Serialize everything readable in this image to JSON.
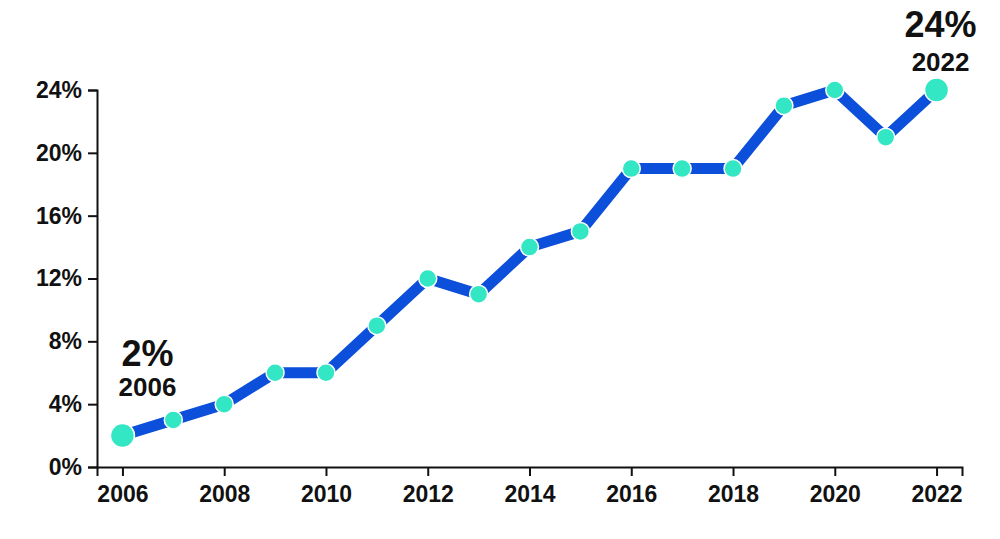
{
  "chart_data": {
    "type": "line",
    "x": [
      2006,
      2007,
      2008,
      2009,
      2010,
      2011,
      2012,
      2013,
      2014,
      2015,
      2016,
      2017,
      2018,
      2019,
      2020,
      2021,
      2022
    ],
    "series": [
      {
        "color": "#0b4fdb",
        "marker": "circle",
        "values": [
          2,
          3,
          4,
          6,
          6,
          9,
          12,
          11,
          14,
          15,
          19,
          19,
          19,
          23,
          24,
          21,
          24
        ]
      }
    ],
    "xlim": [
      2005.5,
      2022.5
    ],
    "xticks": [
      2006,
      2008,
      2010,
      2012,
      2014,
      2016,
      2018,
      2020,
      2022
    ],
    "ylim": [
      0,
      24
    ],
    "yticks": [
      {
        "value": 0,
        "label": "0%"
      },
      {
        "value": 4,
        "label": "4%"
      },
      {
        "value": 8,
        "label": "8%"
      },
      {
        "value": 12,
        "label": "12%"
      },
      {
        "value": 16,
        "label": "16%"
      },
      {
        "value": 20,
        "label": "20%"
      },
      {
        "value": 24,
        "label": "24%"
      }
    ],
    "grid": false,
    "annotations": [
      {
        "label": "2%",
        "x_label": "2006",
        "x": 2006,
        "y": 2
      },
      {
        "label": "24%",
        "x_label": "2022",
        "x": 2022,
        "y": 24
      }
    ]
  }
}
